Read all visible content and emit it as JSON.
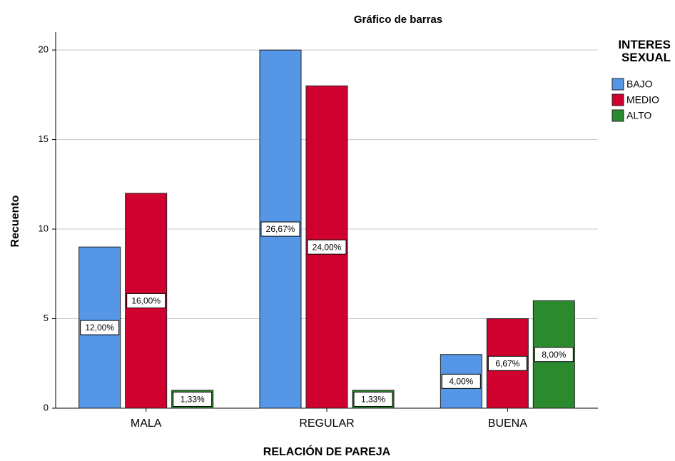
{
  "chart_data": {
    "type": "bar",
    "title": "Gráfico de barras",
    "x_label": "RELACIÓN DE PAREJA",
    "y_label": "Recuento",
    "legend_title": "INTERES SEXUAL",
    "legend": "right",
    "categories": [
      "MALA",
      "REGULAR",
      "BUENA"
    ],
    "series": [
      {
        "name": "BAJO",
        "color": "#5596e6",
        "values": [
          9,
          20,
          3
        ],
        "percent_labels": [
          "12,00%",
          "26,67%",
          "4,00%"
        ]
      },
      {
        "name": "MEDIO",
        "color": "#d0002f",
        "values": [
          12,
          18,
          5
        ],
        "percent_labels": [
          "16,00%",
          "24,00%",
          "6,67%"
        ]
      },
      {
        "name": "ALTO",
        "color": "#2b8a2e",
        "values": [
          1,
          1,
          6
        ],
        "percent_labels": [
          "1,33%",
          "1,33%",
          "8,00%"
        ]
      }
    ],
    "ylim": [
      0,
      21
    ],
    "yticks": [
      0,
      5,
      10,
      15,
      20
    ],
    "grid": true
  }
}
